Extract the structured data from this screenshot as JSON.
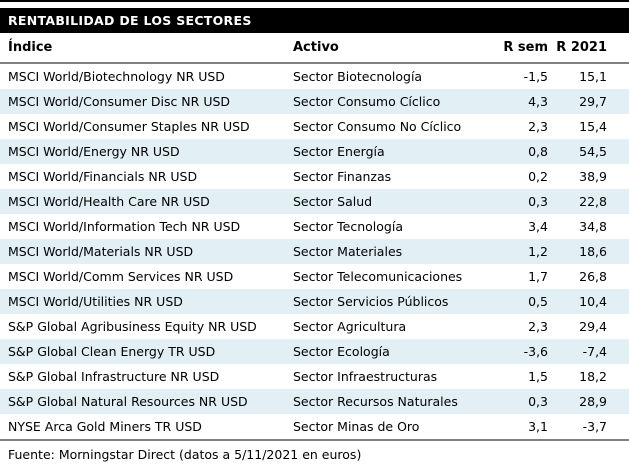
{
  "colors": {
    "title_bg": "#000000",
    "title_fg": "#ffffff",
    "row_alt": "#e2f0f6",
    "rule": "#808080",
    "text": "#000000"
  },
  "chart_data": {
    "type": "table",
    "title": "RENTABILIDAD DE LOS SECTORES",
    "columns": [
      "Índice",
      "Activo",
      "R sem",
      "R 2021"
    ],
    "rows": [
      [
        "MSCI World/Biotechnology NR USD",
        "Sector Biotecnología",
        "-1,5",
        "15,1"
      ],
      [
        "MSCI World/Consumer Disc NR USD",
        "Sector Consumo Cíclico",
        "4,3",
        "29,7"
      ],
      [
        "MSCI World/Consumer Staples NR USD",
        "Sector Consumo No Cíclico",
        "2,3",
        "15,4"
      ],
      [
        "MSCI World/Energy NR USD",
        "Sector Energía",
        "0,8",
        "54,5"
      ],
      [
        "MSCI World/Financials NR USD",
        "Sector Finanzas",
        "0,2",
        "38,9"
      ],
      [
        "MSCI World/Health Care NR USD",
        "Sector Salud",
        "0,3",
        "22,8"
      ],
      [
        "MSCI World/Information Tech NR USD",
        "Sector Tecnología",
        "3,4",
        "34,8"
      ],
      [
        "MSCI World/Materials NR USD",
        "Sector Materiales",
        "1,2",
        "18,6"
      ],
      [
        "MSCI World/Comm Services NR USD",
        "Sector Telecomunicaciones",
        "1,7",
        "26,8"
      ],
      [
        "MSCI World/Utilities NR USD",
        "Sector Servicios Públicos",
        "0,5",
        "10,4"
      ],
      [
        "S&P Global Agribusiness Equity NR USD",
        "Sector Agricultura",
        "2,3",
        "29,4"
      ],
      [
        "S&P Global Clean Energy TR USD",
        "Sector Ecología",
        "-3,6",
        "-7,4"
      ],
      [
        "S&P Global Infrastructure NR USD",
        "Sector Infraestructuras",
        "1,5",
        "18,2"
      ],
      [
        "S&P Global Natural Resources NR USD",
        "Sector Recursos Naturales",
        "0,3",
        "28,9"
      ],
      [
        "NYSE Arca Gold Miners TR USD",
        "Sector Minas de Oro",
        "3,1",
        "-3,7"
      ]
    ],
    "source": "Fuente: Morningstar Direct (datos a 5/11/2021 en euros)",
    "value_format": "decimal comma, one decimal place",
    "layout": "title bar top, bold header row, alternating row shading, gray rules above and below body"
  }
}
